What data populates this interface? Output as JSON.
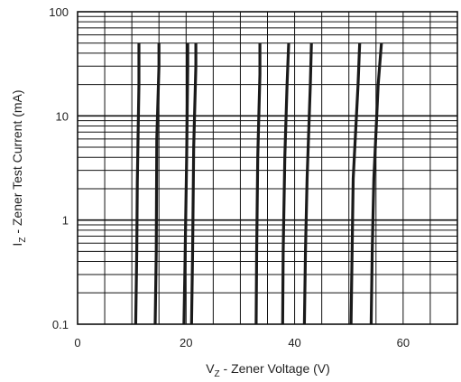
{
  "chart_data": {
    "type": "line",
    "title": "",
    "xlabel": {
      "symbol": "V",
      "sub": "Z",
      "rest": " - Zener Voltage (V)"
    },
    "ylabel": {
      "symbol": "I",
      "sub": "Z",
      "rest": " - Zener Test Current (mA)"
    },
    "x_scale": "linear",
    "y_scale": "log",
    "xlim": [
      0,
      70
    ],
    "ylim": [
      0.1,
      100
    ],
    "x_ticks": [
      0,
      20,
      40,
      60
    ],
    "x_tick_labels": [
      "0",
      "20",
      "40",
      "60"
    ],
    "y_ticks": [
      0.1,
      1,
      10,
      100
    ],
    "y_tick_labels": [
      "0.1",
      "1",
      "10",
      "100"
    ],
    "grid": true,
    "line_color": "#1a1a1a",
    "grid_color": "#111111",
    "series": [
      {
        "points": [
          [
            10.7,
            0.1
          ],
          [
            10.9,
            0.5
          ],
          [
            11.0,
            2.3
          ],
          [
            11.3,
            20
          ],
          [
            11.3,
            50
          ]
        ]
      },
      {
        "points": [
          [
            14.3,
            0.1
          ],
          [
            14.5,
            0.5
          ],
          [
            14.6,
            6
          ],
          [
            15.0,
            30
          ],
          [
            15.0,
            50
          ]
        ]
      },
      {
        "points": [
          [
            19.6,
            0.1
          ],
          [
            19.8,
            0.4
          ],
          [
            20.1,
            4
          ],
          [
            20.3,
            30
          ],
          [
            20.3,
            50
          ]
        ]
      },
      {
        "points": [
          [
            21.0,
            0.1
          ],
          [
            21.2,
            0.5
          ],
          [
            21.4,
            5
          ],
          [
            21.8,
            30
          ],
          [
            21.8,
            50
          ]
        ]
      },
      {
        "points": [
          [
            32.9,
            0.1
          ],
          [
            33.0,
            0.5
          ],
          [
            33.2,
            4
          ],
          [
            33.6,
            25
          ],
          [
            33.6,
            50
          ]
        ]
      },
      {
        "points": [
          [
            37.8,
            0.1
          ],
          [
            37.9,
            0.5
          ],
          [
            38.2,
            4
          ],
          [
            38.6,
            20
          ],
          [
            38.9,
            50
          ]
        ]
      },
      {
        "points": [
          [
            41.8,
            0.1
          ],
          [
            42.0,
            0.5
          ],
          [
            42.3,
            2.5
          ],
          [
            42.9,
            20
          ],
          [
            43.1,
            50
          ]
        ]
      },
      {
        "points": [
          [
            50.4,
            0.1
          ],
          [
            50.6,
            0.5
          ],
          [
            50.8,
            2.5
          ],
          [
            51.7,
            20
          ],
          [
            52.0,
            50
          ]
        ]
      },
      {
        "points": [
          [
            54.1,
            0.1
          ],
          [
            54.3,
            0.5
          ],
          [
            54.6,
            2.5
          ],
          [
            55.4,
            20
          ],
          [
            56.0,
            50
          ]
        ]
      }
    ]
  }
}
